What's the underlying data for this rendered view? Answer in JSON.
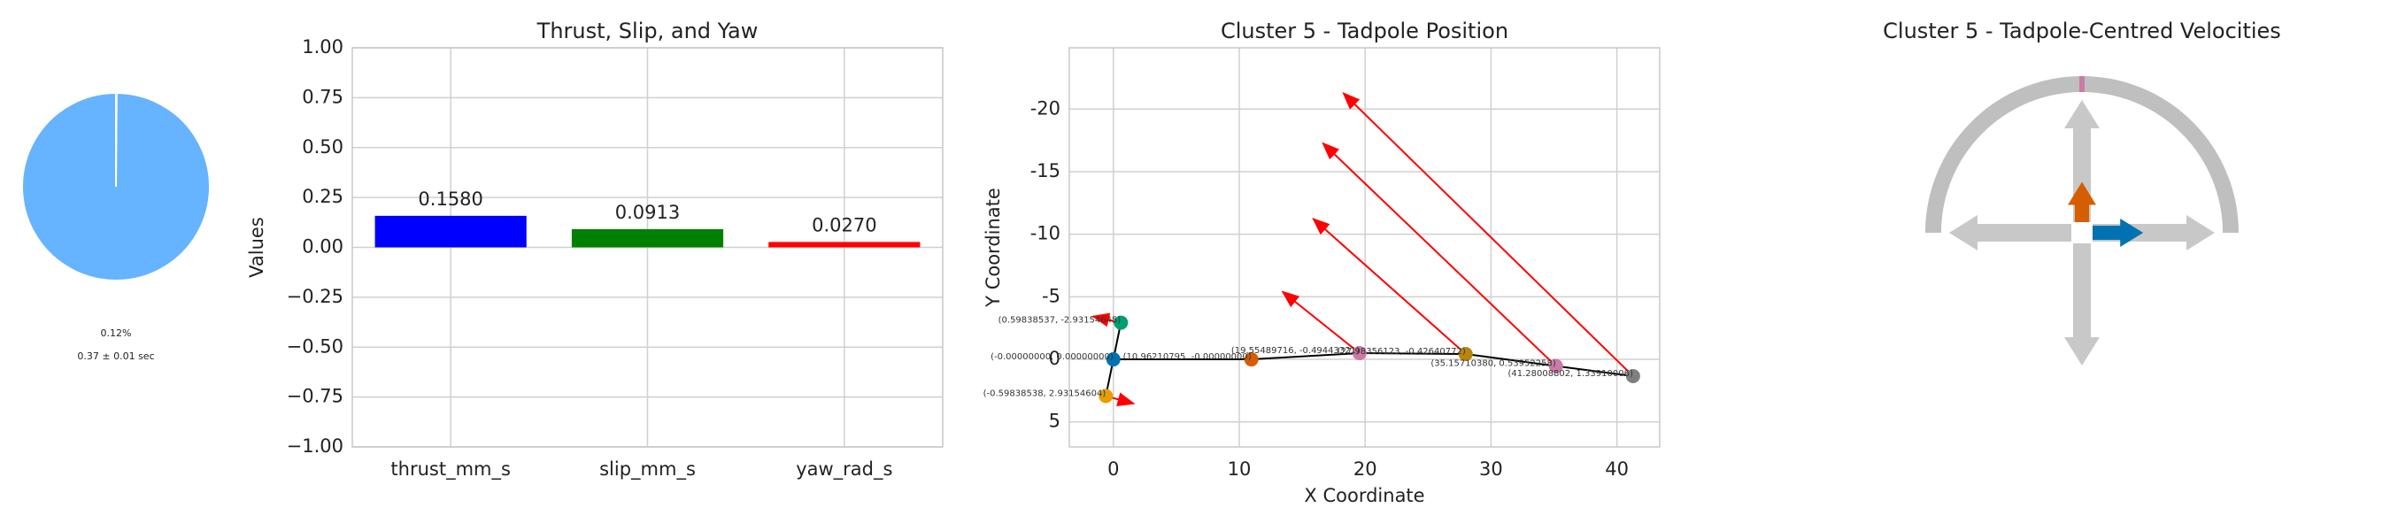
{
  "chart_data": [
    {
      "type": "pie",
      "values": [
        0.12,
        99.88
      ],
      "colors": [
        "#ffffff",
        "#66b3ff"
      ],
      "value_labels": [
        "0.12%",
        null
      ],
      "annotation": "0.37 ± 0.01 sec"
    },
    {
      "type": "bar",
      "title": "Thrust, Slip, and Yaw",
      "y_label": "Values",
      "categories": [
        "thrust_mm_s",
        "slip_mm_s",
        "yaw_rad_s"
      ],
      "values": [
        0.158,
        0.0913,
        0.027
      ],
      "value_labels": [
        "0.1580",
        "0.0913",
        "0.0270"
      ],
      "colors": [
        "#0000ff",
        "#008000",
        "#ff0000"
      ],
      "ylim": [
        -1,
        1
      ],
      "yticks": [
        {
          "value": -1,
          "label": "−1.00"
        },
        {
          "value": -0.75,
          "label": "−0.75"
        },
        {
          "value": -0.5,
          "label": "−0.50"
        },
        {
          "value": -0.25,
          "label": "−0.25"
        },
        {
          "value": 0,
          "label": "0.00"
        },
        {
          "value": 0.25,
          "label": "0.25"
        },
        {
          "value": 0.5,
          "label": "0.50"
        },
        {
          "value": 0.75,
          "label": "0.75"
        },
        {
          "value": 1,
          "label": "1.00"
        }
      ],
      "grid": true
    },
    {
      "type": "scatter",
      "title": "Cluster 5 - Tadpole Position",
      "x_label": "X Coordinate",
      "y_label": "Y Coordinate",
      "xlim": [
        -3.5,
        43.4
      ],
      "ylim": [
        7,
        -24.9
      ],
      "xticks": [
        0,
        10,
        20,
        30,
        40
      ],
      "yticks": [
        -20,
        -15,
        -10,
        -5,
        0,
        5
      ],
      "grid": true,
      "line_color": "#000000",
      "arrow_color": "#ff0000",
      "points": [
        {
          "x": -0.59838538,
          "y": 2.93154604,
          "label": "(-0.59838538, 2.93154604)",
          "color": "#e69f00",
          "u": 2.2,
          "v": 0.6
        },
        {
          "x": 0,
          "y": 0,
          "label": "(-0.00000000, 0.00000000)",
          "color": "#0072b2"
        },
        {
          "x": 0.59838537,
          "y": -2.93154645,
          "label": "(0.59838537, -2.93154645)",
          "color": "#009e73",
          "u": -2.2,
          "v": -0.5
        },
        {
          "x": 10.96210795,
          "y": 0,
          "label": "(10.96210795, -0.00000000)",
          "color": "#d55e00"
        },
        {
          "x": 19.55489716,
          "y": -0.49443321,
          "label": "(19.55489716, -0.49443321)",
          "color": "#cc79a7",
          "u": -6.1,
          "v": -4.9
        },
        {
          "x": 27.98356123,
          "y": -0.42640772,
          "label": "(27.98356123, -0.42640772)",
          "color": "#b8860b",
          "u": -12.1,
          "v": -10.8
        },
        {
          "x": 35.1571038,
          "y": 0.53952258,
          "label": "(35.15710380, 0.53952258)",
          "color": "#cc79a7",
          "u": -18.5,
          "v": -17.8
        },
        {
          "x": 41.28008802,
          "y": 1.33910006,
          "label": "(41.28008802, 1.33910006)",
          "color": "#7f7f7f",
          "u": -23,
          "v": -22.6
        }
      ]
    },
    {
      "type": "compass",
      "title": "Cluster 5 - Tadpole-Centred Velocities",
      "vectors": [
        {
          "color": "#d55e00",
          "dx": 0,
          "dy": 0.35
        },
        {
          "color": "#0072b2",
          "dx": 0.44,
          "dy": 0
        }
      ],
      "yaw_marker": {
        "angle": 90,
        "color": "#cc79a7"
      }
    }
  ]
}
